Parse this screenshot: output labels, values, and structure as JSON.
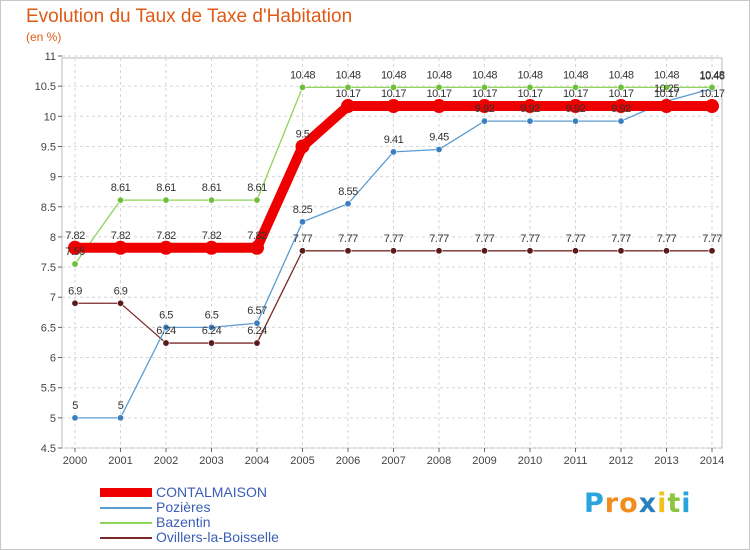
{
  "chart_data": {
    "type": "line",
    "title": "Evolution du Taux de Taxe d'Habitation",
    "subtitle": "(en %)",
    "xlabel": "",
    "ylabel": "",
    "x": [
      "2000",
      "2001",
      "2002",
      "2003",
      "2004",
      "2005",
      "2006",
      "2007",
      "2008",
      "2009",
      "2010",
      "2011",
      "2012",
      "2013",
      "2014"
    ],
    "ylim": [
      4.5,
      11
    ],
    "yticks": [
      "4.5",
      "5",
      "5.5",
      "6",
      "6.5",
      "7",
      "7.5",
      "8",
      "8.5",
      "9",
      "9.5",
      "10",
      "10.5",
      "11"
    ],
    "grid": true,
    "legend_position": "bottom-left",
    "series": [
      {
        "name": "CONTALMAISON",
        "color": "#ee0000",
        "values": [
          7.82,
          7.82,
          7.82,
          7.82,
          7.82,
          9.5,
          10.17,
          10.17,
          10.17,
          10.17,
          10.17,
          10.17,
          10.17,
          10.17,
          10.17
        ],
        "labels": [
          "7.82",
          "7.82",
          "7.82",
          "7.82",
          "7.82",
          "9.5",
          "10.17",
          "10.17",
          "10.17",
          "10.17",
          "10.17",
          "10.17",
          "10.17",
          "10.17",
          "10.17"
        ]
      },
      {
        "name": "Pozières",
        "color": "#5b9bd0",
        "values": [
          5,
          5,
          6.5,
          6.5,
          6.57,
          8.25,
          8.55,
          9.41,
          9.45,
          9.92,
          9.92,
          9.92,
          9.92,
          10.25,
          10.46
        ],
        "labels": [
          "5",
          "5",
          "6.5",
          "6.5",
          "6.57",
          "8.25",
          "8.55",
          "9.41",
          "9.45",
          "9.92",
          "9.92",
          "9.92",
          "9.92",
          "10.25",
          "10.46"
        ]
      },
      {
        "name": "Bazentin",
        "color": "#8ed35a",
        "values": [
          7.55,
          8.61,
          8.61,
          8.61,
          8.61,
          10.48,
          10.48,
          10.48,
          10.48,
          10.48,
          10.48,
          10.48,
          10.48,
          10.48,
          10.48
        ],
        "labels": [
          "7.55",
          "8.61",
          "8.61",
          "8.61",
          "8.61",
          "10.48",
          "10.48",
          "10.48",
          "10.48",
          "10.48",
          "10.48",
          "10.48",
          "10.48",
          "10.48",
          "10.48"
        ]
      },
      {
        "name": "Ovillers-la-Boisselle",
        "color": "#7a2a2a",
        "values": [
          6.9,
          6.9,
          6.24,
          6.24,
          6.24,
          7.77,
          7.77,
          7.77,
          7.77,
          7.77,
          7.77,
          7.77,
          7.77,
          7.77,
          7.77
        ],
        "labels": [
          "6.9",
          "6.9",
          "6.24",
          "6.24",
          "6.24",
          "7.77",
          "7.77",
          "7.77",
          "7.77",
          "7.77",
          "7.77",
          "7.77",
          "7.77",
          "7.77",
          "7.77"
        ]
      }
    ]
  },
  "logo": {
    "letters": [
      "P",
      "r",
      "o",
      "x",
      "i",
      "t",
      "i"
    ],
    "colors": [
      "#2aa4dc",
      "#f28c1c",
      "#f28c1c",
      "#2a7fbf",
      "#f2c21c",
      "#8cc63e",
      "#2aa4dc"
    ]
  }
}
